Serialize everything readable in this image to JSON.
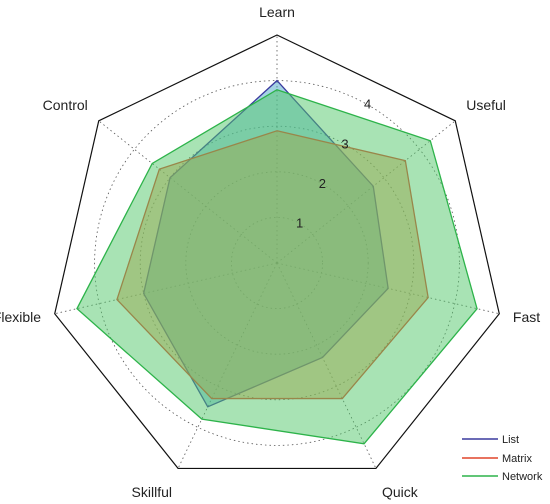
{
  "chart_data": {
    "type": "radar",
    "categories": [
      "Learn",
      "Useful",
      "Fast",
      "Quick",
      "Skillful",
      "Flexible",
      "Control"
    ],
    "r_ticks": [
      1,
      2,
      3,
      4
    ],
    "r_max": 5,
    "grid": true,
    "legend_position": "bottom-right",
    "series": [
      {
        "name": "List",
        "color": "#3a3a9e",
        "fill": "#4aa6c8",
        "values": [
          4.0,
          2.7,
          2.5,
          2.3,
          3.5,
          3.0,
          3.0
        ]
      },
      {
        "name": "Matrix",
        "color": "#e0452a",
        "fill": "#e08c3c",
        "values": [
          2.9,
          3.6,
          3.4,
          3.3,
          3.3,
          3.6,
          3.3
        ]
      },
      {
        "name": "Network",
        "color": "#2db34a",
        "fill": "#52c76a",
        "values": [
          3.8,
          4.3,
          4.5,
          4.4,
          3.8,
          4.5,
          3.5
        ]
      }
    ]
  }
}
